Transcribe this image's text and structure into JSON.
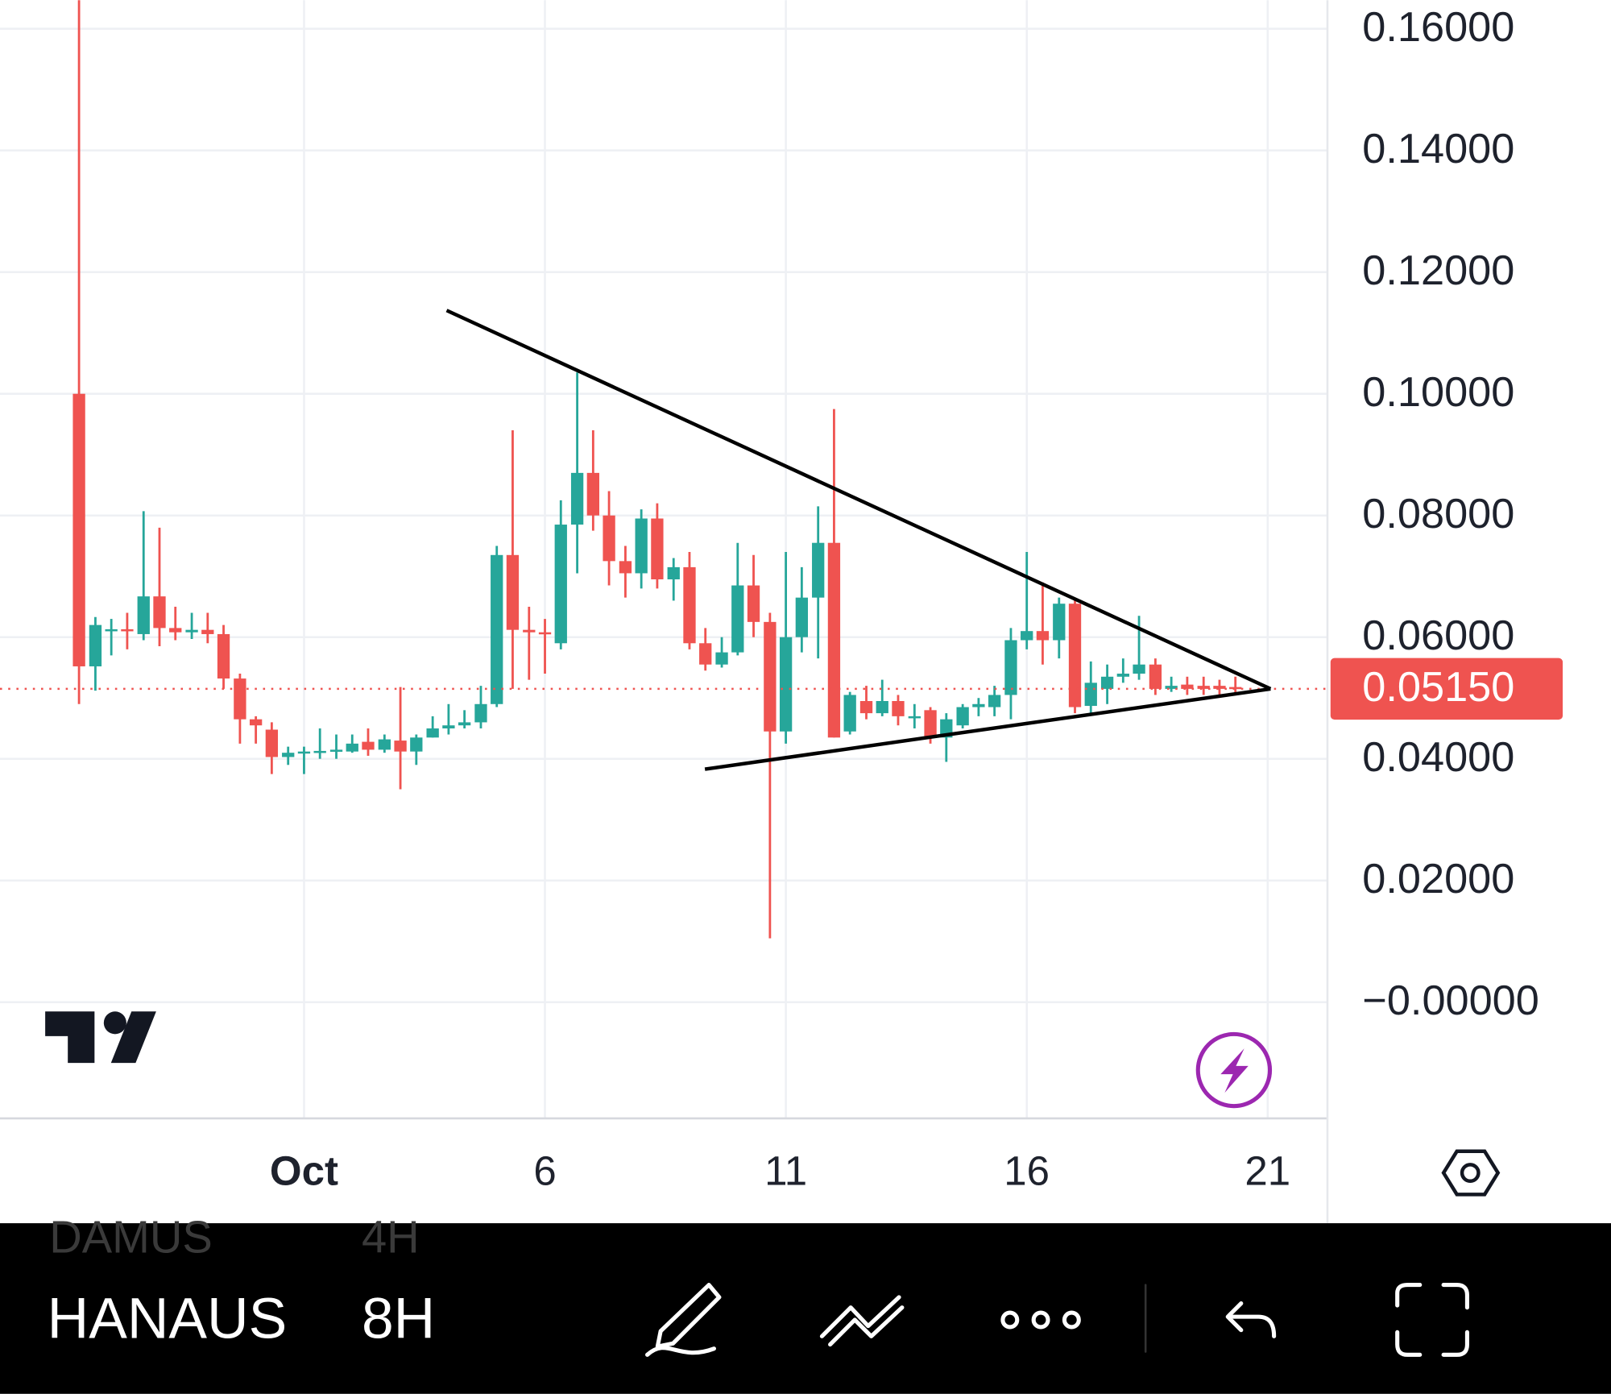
{
  "chart_data": {
    "type": "candlestick",
    "x": [
      -3.67,
      -3.33,
      -3,
      -2.67,
      -2.33,
      -2,
      -1.67,
      -1.33,
      -1,
      -0.67,
      -0.33,
      0,
      0.33,
      0.67,
      1,
      1.33,
      1.67,
      2,
      2.33,
      2.67,
      3,
      3.33,
      3.67,
      4,
      4.33,
      4.67,
      5,
      5.33,
      5.67,
      6,
      6.33,
      6.67,
      7,
      7.33,
      7.67,
      8,
      8.33,
      8.67,
      9,
      9.33,
      9.67,
      10,
      10.33,
      10.67,
      11,
      11.33,
      11.67,
      12,
      12.33,
      12.67,
      13,
      13.33,
      13.67,
      14,
      14.33,
      14.67,
      15,
      15.33,
      15.67,
      16,
      16.33,
      16.67,
      17,
      17.33,
      17.67,
      18,
      18.33,
      18.67,
      19,
      19.33,
      19.67,
      20,
      20.33
    ],
    "open": [
      0.1,
      0.0552,
      0.061,
      0.0613,
      0.0605,
      0.0667,
      0.0615,
      0.0608,
      0.0612,
      0.0605,
      0.0532,
      0.0465,
      0.0448,
      0.0403,
      0.041,
      0.0412,
      0.0413,
      0.0412,
      0.0428,
      0.0415,
      0.043,
      0.0412,
      0.0435,
      0.045,
      0.0455,
      0.046,
      0.049,
      0.0735,
      0.0612,
      0.0608,
      0.059,
      0.0785,
      0.087,
      0.08,
      0.0725,
      0.0705,
      0.0795,
      0.0695,
      0.0715,
      0.059,
      0.0555,
      0.0575,
      0.0685,
      0.0625,
      0.0445,
      0.06,
      0.0665,
      0.0755,
      0.0445,
      0.0495,
      0.0475,
      0.0495,
      0.047,
      0.048,
      0.0435,
      0.0455,
      0.0485,
      0.0485,
      0.0505,
      0.0595,
      0.061,
      0.0595,
      0.0655,
      0.0487,
      0.0515,
      0.0535,
      0.054,
      0.0555,
      0.0515,
      0.0522,
      0.052,
      0.052,
      0.0518
    ],
    "high": [
      0.17,
      0.0633,
      0.063,
      0.064,
      0.0807,
      0.078,
      0.065,
      0.064,
      0.064,
      0.062,
      0.054,
      0.047,
      0.046,
      0.042,
      0.042,
      0.045,
      0.044,
      0.044,
      0.045,
      0.044,
      0.0518,
      0.044,
      0.047,
      0.049,
      0.048,
      0.052,
      0.075,
      0.094,
      0.065,
      0.063,
      0.0825,
      0.1035,
      0.094,
      0.084,
      0.075,
      0.081,
      0.082,
      0.073,
      0.074,
      0.0615,
      0.06,
      0.0755,
      0.0735,
      0.064,
      0.074,
      0.0715,
      0.0815,
      0.0975,
      0.051,
      0.052,
      0.053,
      0.0505,
      0.049,
      0.0485,
      0.0475,
      0.049,
      0.05,
      0.052,
      0.0615,
      0.074,
      0.069,
      0.0665,
      0.0665,
      0.056,
      0.0555,
      0.0565,
      0.0635,
      0.0565,
      0.0535,
      0.0535,
      0.0535,
      0.053,
      0.0535
    ],
    "low": [
      0.049,
      0.0512,
      0.057,
      0.058,
      0.0595,
      0.0585,
      0.0595,
      0.0597,
      0.059,
      0.0515,
      0.0425,
      0.0425,
      0.0375,
      0.039,
      0.0375,
      0.04,
      0.04,
      0.041,
      0.0405,
      0.041,
      0.035,
      0.039,
      0.0435,
      0.044,
      0.045,
      0.045,
      0.0485,
      0.0515,
      0.053,
      0.054,
      0.058,
      0.0705,
      0.0775,
      0.0685,
      0.0665,
      0.068,
      0.068,
      0.066,
      0.058,
      0.0545,
      0.055,
      0.057,
      0.06,
      0.0105,
      0.0425,
      0.0575,
      0.0565,
      0.0435,
      0.044,
      0.0465,
      0.047,
      0.0455,
      0.045,
      0.0425,
      0.0395,
      0.045,
      0.047,
      0.047,
      0.0465,
      0.058,
      0.0555,
      0.0565,
      0.0475,
      0.0475,
      0.049,
      0.0525,
      0.053,
      0.0505,
      0.051,
      0.0505,
      0.0505,
      0.0505,
      0.0505
    ],
    "close": [
      0.0552,
      0.062,
      0.0613,
      0.061,
      0.0667,
      0.0615,
      0.0608,
      0.0612,
      0.0605,
      0.0532,
      0.0465,
      0.0455,
      0.0403,
      0.041,
      0.0412,
      0.0413,
      0.0415,
      0.0425,
      0.0415,
      0.0432,
      0.0412,
      0.0435,
      0.045,
      0.0455,
      0.046,
      0.049,
      0.0735,
      0.0612,
      0.0608,
      0.0605,
      0.0785,
      0.087,
      0.08,
      0.0725,
      0.0705,
      0.0795,
      0.0695,
      0.0715,
      0.059,
      0.0555,
      0.0575,
      0.0685,
      0.0625,
      0.0445,
      0.06,
      0.0665,
      0.0755,
      0.0435,
      0.0505,
      0.0475,
      0.0495,
      0.047,
      0.047,
      0.0435,
      0.0465,
      0.0485,
      0.049,
      0.0505,
      0.0595,
      0.061,
      0.0595,
      0.0655,
      0.0485,
      0.0525,
      0.0535,
      0.054,
      0.0555,
      0.0515,
      0.052,
      0.0515,
      0.0515,
      0.0515,
      0.0515
    ],
    "up_color": "#26a69a",
    "down_color": "#ef5350",
    "xlim": [
      -5.31,
      22.24
    ],
    "xticks": [
      {
        "value": 1,
        "label": "Oct"
      },
      6,
      11,
      16,
      21
    ],
    "ylim": [
      -0.0191,
      0.1647
    ],
    "yticks": [
      {
        "value": 0.16,
        "label": "0.16000"
      },
      {
        "value": 0.14,
        "label": "0.14000"
      },
      {
        "value": 0.12,
        "label": "0.12000"
      },
      {
        "value": 0.1,
        "label": "0.10000"
      },
      {
        "value": 0.08,
        "label": "0.08000"
      },
      {
        "value": 0.06,
        "label": "0.06000"
      },
      {
        "value": 0.04,
        "label": "0.04000"
      },
      {
        "value": 0.02,
        "label": "0.02000"
      },
      {
        "value": 0,
        "label": "−0.00000"
      }
    ],
    "grid": true,
    "last_price": 0.0515,
    "last_price_label": "0.05150",
    "trendlines": [
      {
        "x": [
          3.96,
          21.06
        ],
        "y": [
          0.1137,
          0.0515
        ]
      },
      {
        "x": [
          9.32,
          21.06
        ],
        "y": [
          0.0383,
          0.0515
        ]
      }
    ]
  },
  "toolbar": {
    "symbol": "HANAUS",
    "interval": "8H",
    "ghost_symbol": "DAMUS",
    "ghost_interval": "4H"
  }
}
